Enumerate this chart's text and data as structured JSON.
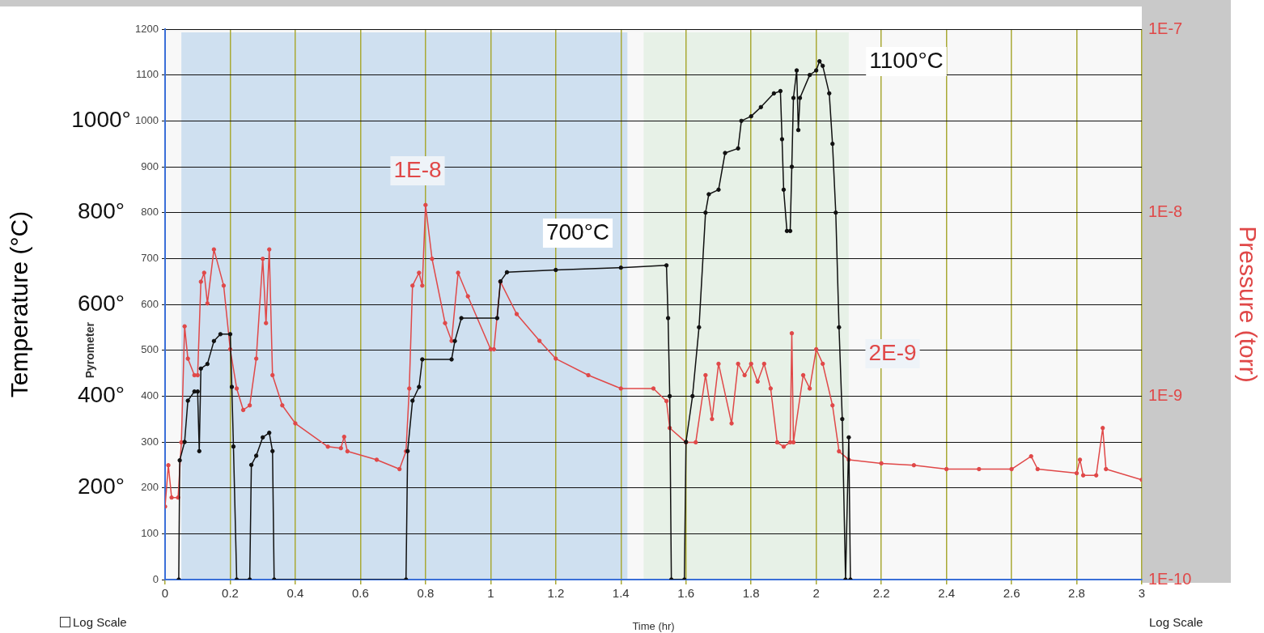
{
  "chart_data": {
    "type": "line",
    "xlabel": "Time (hr)",
    "ylabel": "Temperature (°C)",
    "y2label": "Pressure (torr)",
    "xlim": [
      0,
      3
    ],
    "xticks": [
      0,
      0.2,
      0.4,
      0.6,
      0.8,
      1,
      1.2,
      1.4,
      1.6,
      1.8,
      2,
      2.2,
      2.4,
      2.6,
      2.8,
      3
    ],
    "ylim": [
      0,
      1200
    ],
    "yticks": [
      0,
      100,
      200,
      300,
      400,
      500,
      600,
      700,
      800,
      900,
      1000,
      1100,
      1200
    ],
    "y2lim": [
      1e-10,
      1e-07
    ],
    "y2ticks": [
      {
        "value": 1e-10,
        "label": "1E-10"
      },
      {
        "value": 1e-09,
        "label": "1E-9"
      },
      {
        "value": 1e-08,
        "label": "1E-8"
      },
      {
        "value": 1e-07,
        "label": "1E-7"
      }
    ],
    "log": "y2",
    "grid": true,
    "legend": false,
    "marker": "circle",
    "line_style": "solid",
    "bands": [
      {
        "axis": "x",
        "from": 0.05,
        "to": 1.42,
        "color": "#cfe0f0"
      },
      {
        "axis": "x",
        "from": 1.47,
        "to": 2.1,
        "color": "#e7f1e7"
      }
    ],
    "series": [
      {
        "color": "#111111",
        "x": [
          0.042,
          0.045,
          0.06,
          0.07,
          0.09,
          0.1,
          0.105,
          0.11,
          0.13,
          0.15,
          0.17,
          0.2,
          0.205,
          0.21,
          0.22,
          0.26,
          0.265,
          0.28,
          0.3,
          0.32,
          0.33,
          0.335,
          0.74,
          0.745,
          0.76,
          0.78,
          0.79,
          0.88,
          0.89,
          0.91,
          1.02,
          1.03,
          1.05,
          1.2,
          1.4,
          1.54,
          1.545,
          1.55,
          1.555,
          1.595,
          1.6,
          1.62,
          1.64,
          1.66,
          1.67,
          1.7,
          1.72,
          1.76,
          1.77,
          1.8,
          1.83,
          1.87,
          1.89,
          1.895,
          1.9,
          1.91,
          1.92,
          1.925,
          1.93,
          1.94,
          1.945,
          1.95,
          1.98,
          2,
          2.01,
          2.02,
          2.04,
          2.05,
          2.06,
          2.07,
          2.08,
          2.09,
          2.1,
          2.105
        ],
        "values": [
          0,
          260,
          300,
          390,
          410,
          410,
          280,
          460,
          470,
          520,
          535,
          535,
          420,
          290,
          0,
          0,
          250,
          270,
          310,
          320,
          280,
          0,
          0,
          280,
          390,
          420,
          480,
          480,
          520,
          570,
          570,
          650,
          670,
          675,
          680,
          685,
          570,
          400,
          0,
          0,
          300,
          400,
          550,
          800,
          840,
          850,
          930,
          940,
          1000,
          1010,
          1030,
          1060,
          1065,
          960,
          850,
          760,
          760,
          900,
          1050,
          1110,
          980,
          1050,
          1100,
          1110,
          1130,
          1120,
          1060,
          950,
          800,
          550,
          350,
          0,
          310,
          0
        ]
      },
      {
        "color": "#e04848",
        "axis": "y2",
        "x": [
          0,
          0.01,
          0.02,
          0.04,
          0.05,
          0.06,
          0.07,
          0.09,
          0.1,
          0.11,
          0.12,
          0.13,
          0.15,
          0.18,
          0.2,
          0.22,
          0.24,
          0.26,
          0.28,
          0.3,
          0.31,
          0.32,
          0.33,
          0.36,
          0.4,
          0.5,
          0.54,
          0.55,
          0.56,
          0.65,
          0.72,
          0.74,
          0.75,
          0.76,
          0.78,
          0.79,
          0.8,
          0.82,
          0.86,
          0.88,
          0.9,
          0.93,
          1,
          1.01,
          1.03,
          1.08,
          1.15,
          1.2,
          1.3,
          1.4,
          1.5,
          1.54,
          1.55,
          1.6,
          1.63,
          1.66,
          1.68,
          1.7,
          1.74,
          1.76,
          1.78,
          1.8,
          1.82,
          1.84,
          1.86,
          1.88,
          1.9,
          1.92,
          1.925,
          1.93,
          1.96,
          1.98,
          2,
          2.02,
          2.05,
          2.07,
          2.1,
          2.2,
          2.3,
          2.4,
          2.5,
          2.6,
          2.66,
          2.68,
          2.8,
          2.81,
          2.82,
          2.86,
          2.88,
          2.89,
          3
        ],
        "values": [
          2.5e-10,
          4.2e-10,
          2.8e-10,
          2.8e-10,
          5.6e-10,
          2.4e-09,
          1.6e-09,
          1.3e-09,
          1.3e-09,
          4.2e-09,
          4.7e-09,
          3.2e-09,
          6.3e-09,
          4e-09,
          1.8e-09,
          1.1e-09,
          8.4e-10,
          8.9e-10,
          1.6e-09,
          5.6e-09,
          2.5e-09,
          6.3e-09,
          1.3e-09,
          8.9e-10,
          7.1e-10,
          5.3e-10,
          5.2e-10,
          6e-10,
          5e-10,
          4.5e-10,
          4e-10,
          5e-10,
          1.1e-09,
          4e-09,
          4.7e-09,
          4e-09,
          1.1e-08,
          5.6e-09,
          2.5e-09,
          2e-09,
          4.7e-09,
          3.5e-09,
          1.8e-09,
          1.8e-09,
          4.2e-09,
          2.8e-09,
          2e-09,
          1.6e-09,
          1.3e-09,
          1.1e-09,
          1.1e-09,
          9.4e-10,
          6.7e-10,
          5.6e-10,
          5.6e-10,
          1.3e-09,
          7.5e-10,
          1.5e-09,
          7.1e-10,
          1.5e-09,
          1.3e-09,
          1.5e-09,
          1.2e-09,
          1.5e-09,
          1.1e-09,
          5.6e-10,
          5.3e-10,
          5.6e-10,
          2.2e-09,
          5.6e-10,
          1.3e-09,
          1.1e-09,
          1.8e-09,
          1.5e-09,
          8.9e-10,
          5e-10,
          4.5e-10,
          4.3e-10,
          4.2e-10,
          4e-10,
          4e-10,
          4e-10,
          4.7e-10,
          4e-10,
          3.8e-10,
          4.5e-10,
          3.7e-10,
          3.7e-10,
          6.7e-10,
          4e-10,
          3.5e-10
        ]
      }
    ],
    "annotations": [
      "Pyrometer",
      "Log Scale",
      "Log Scale",
      "1000°",
      "800°",
      "600°",
      "400°",
      "200°",
      "1E-8",
      "700°C",
      "1100°C",
      "2E-9"
    ]
  }
}
